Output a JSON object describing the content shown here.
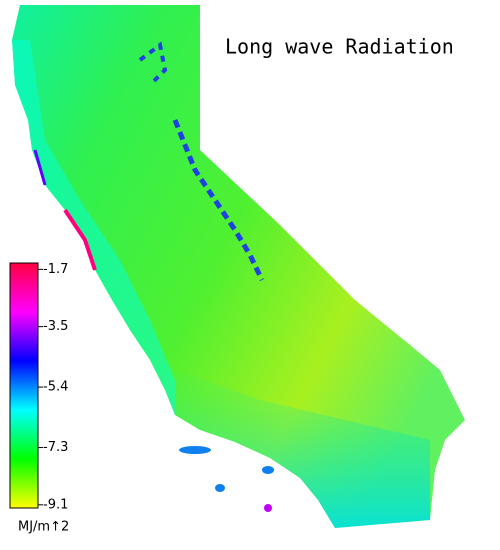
{
  "title": "Long wave Radiation",
  "colorbar": {
    "ticks": [
      -1.7,
      -3.5,
      -5.4,
      -7.3,
      -9.1
    ],
    "clim": [
      -1.5,
      -9.2
    ],
    "unit": "MJ/m↑2",
    "colormap": [
      "#ff0040",
      "#ff00ff",
      "#0000ff",
      "#00ffff",
      "#00ff00",
      "#ffff00"
    ]
  }
}
